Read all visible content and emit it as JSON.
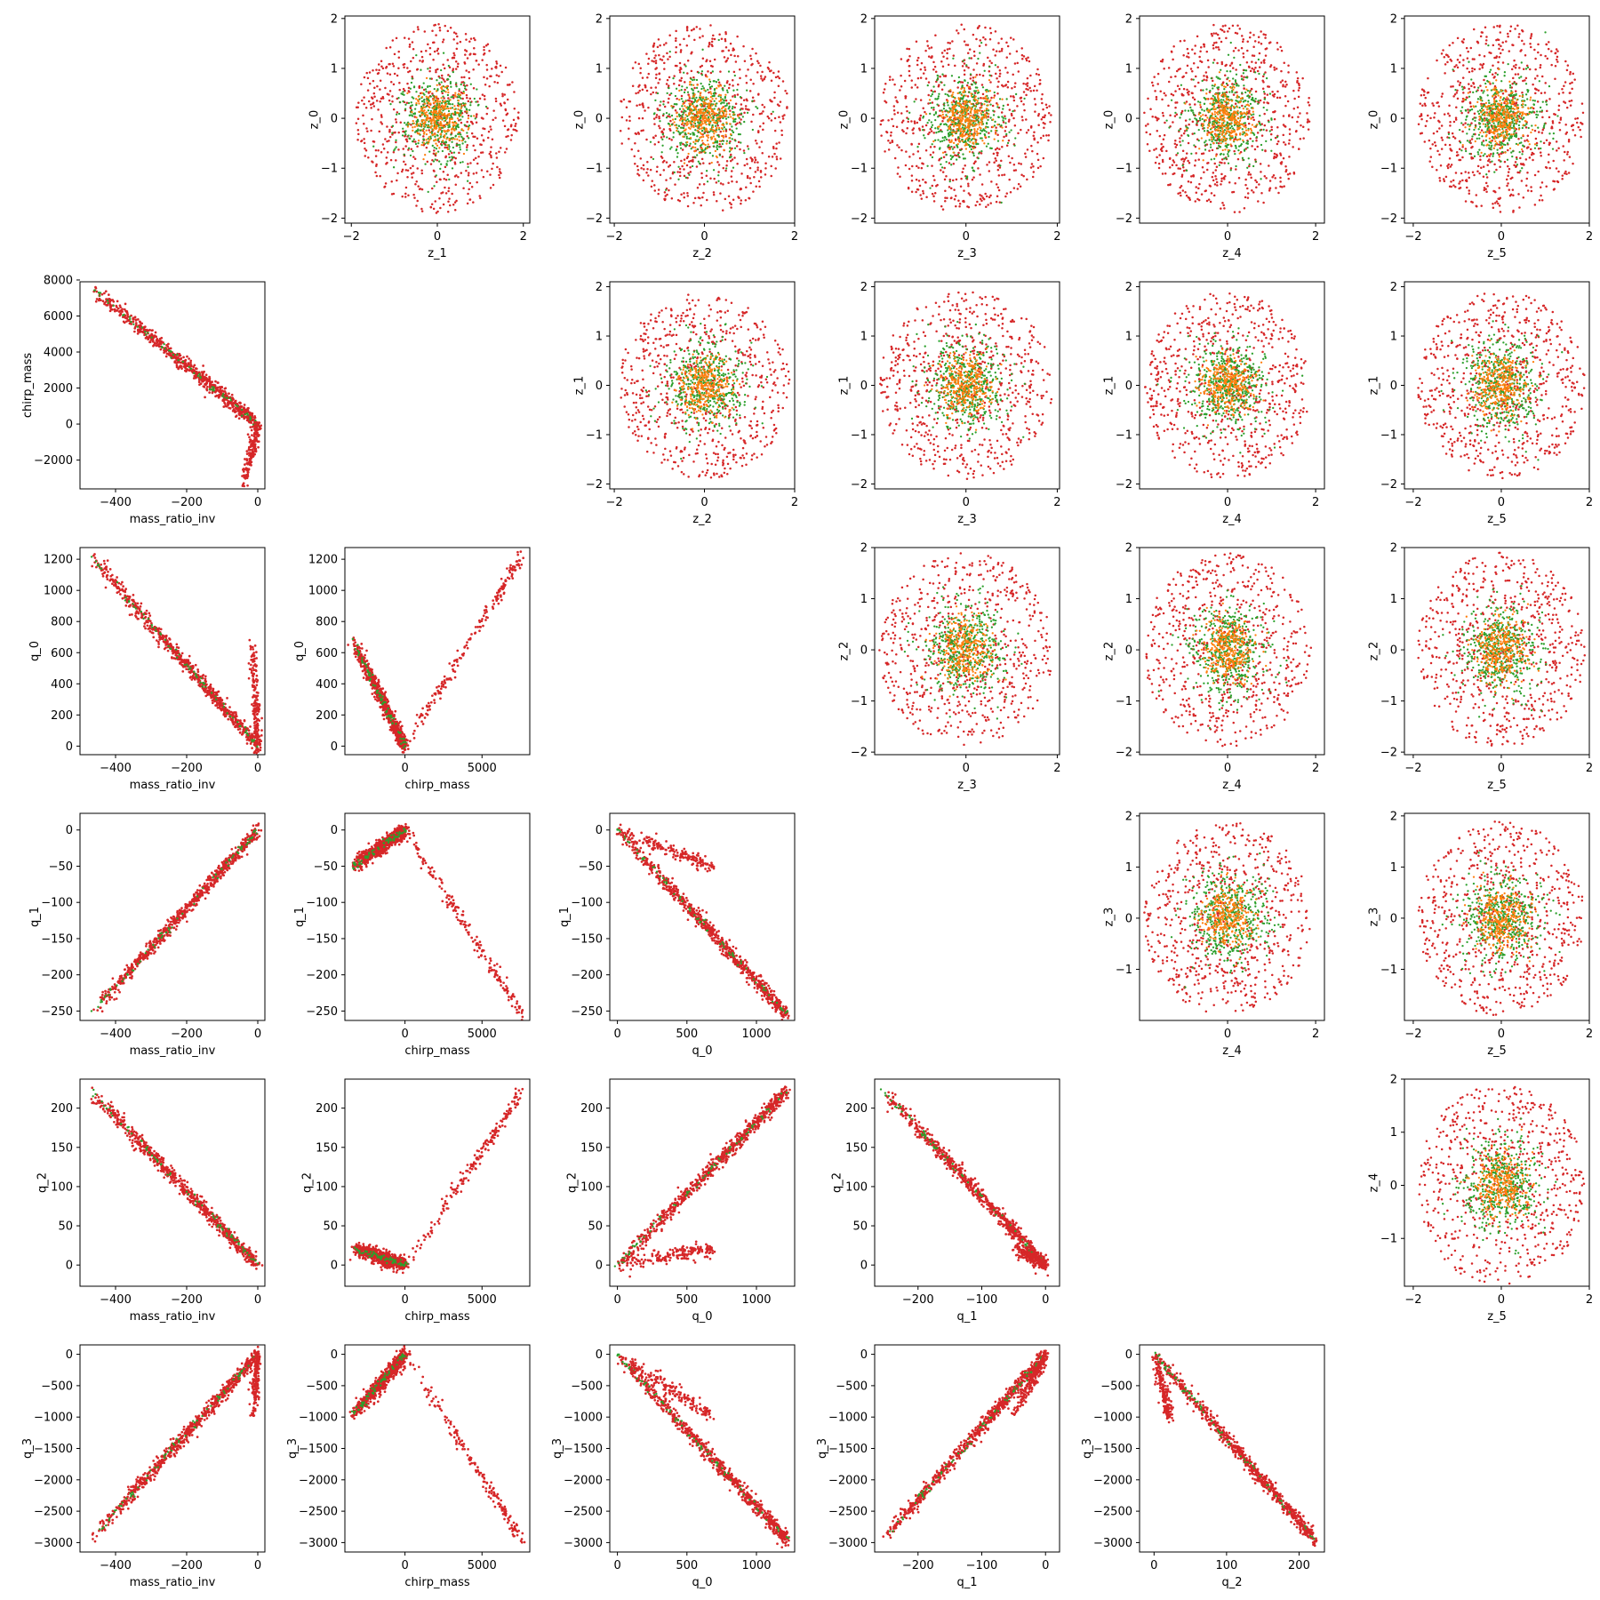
{
  "colors": {
    "red": "#d62728",
    "green": "#2ca02c",
    "orange": "#ff7f0e",
    "axis": "#000000",
    "background": "#ffffff"
  },
  "chart_data": {
    "type": "scatter",
    "layout": "pair-plot grid, 6 rows x 6 columns; lower triangle shows physical parameters, upper triangle shows latent z variables, diagonal empty",
    "series_colors": [
      "red",
      "green",
      "orange"
    ],
    "panels": [
      {
        "row": 0,
        "col": 1,
        "kind": "latent",
        "xlabel": "z_1",
        "ylabel": "z_0",
        "xlim": [
          -2.15,
          2.15
        ],
        "ylim": [
          -2.1,
          2.05
        ],
        "xticks": [
          -2,
          0,
          2
        ],
        "yticks": [
          -2,
          -1,
          0,
          1,
          2
        ],
        "seed": 11
      },
      {
        "row": 0,
        "col": 2,
        "kind": "latent",
        "xlabel": "z_2",
        "ylabel": "z_0",
        "xlim": [
          -2.1,
          2.0
        ],
        "ylim": [
          -2.1,
          2.05
        ],
        "xticks": [
          -2,
          0,
          2
        ],
        "yticks": [
          -2,
          -1,
          0,
          1,
          2
        ],
        "seed": 12
      },
      {
        "row": 0,
        "col": 3,
        "kind": "latent",
        "xlabel": "z_3",
        "ylabel": "z_0",
        "xlim": [
          -2.0,
          2.05
        ],
        "ylim": [
          -2.1,
          2.05
        ],
        "xticks": [
          0,
          2
        ],
        "yticks": [
          -2,
          -1,
          0,
          1,
          2
        ],
        "seed": 13
      },
      {
        "row": 0,
        "col": 4,
        "kind": "latent",
        "xlabel": "z_4",
        "ylabel": "z_0",
        "xlim": [
          -2.0,
          2.2
        ],
        "ylim": [
          -2.1,
          2.05
        ],
        "xticks": [
          0,
          2
        ],
        "yticks": [
          -2,
          -1,
          0,
          1,
          2
        ],
        "seed": 14
      },
      {
        "row": 0,
        "col": 5,
        "kind": "latent",
        "xlabel": "z_5",
        "ylabel": "z_0",
        "xlim": [
          -2.2,
          2.0
        ],
        "ylim": [
          -2.1,
          2.05
        ],
        "xticks": [
          -2,
          0,
          2
        ],
        "yticks": [
          -2,
          -1,
          0,
          1,
          2
        ],
        "seed": 15
      },
      {
        "row": 1,
        "col": 2,
        "kind": "latent",
        "xlabel": "z_2",
        "ylabel": "z_1",
        "xlim": [
          -2.1,
          2.0
        ],
        "ylim": [
          -2.1,
          2.1
        ],
        "xticks": [
          -2,
          0,
          2
        ],
        "yticks": [
          -2,
          -1,
          0,
          1,
          2
        ],
        "seed": 21
      },
      {
        "row": 1,
        "col": 3,
        "kind": "latent",
        "xlabel": "z_3",
        "ylabel": "z_1",
        "xlim": [
          -2.0,
          2.05
        ],
        "ylim": [
          -2.1,
          2.1
        ],
        "xticks": [
          0,
          2
        ],
        "yticks": [
          -2,
          -1,
          0,
          1,
          2
        ],
        "seed": 22
      },
      {
        "row": 1,
        "col": 4,
        "kind": "latent",
        "xlabel": "z_4",
        "ylabel": "z_1",
        "xlim": [
          -2.0,
          2.2
        ],
        "ylim": [
          -2.1,
          2.1
        ],
        "xticks": [
          0,
          2
        ],
        "yticks": [
          -2,
          -1,
          0,
          1,
          2
        ],
        "seed": 23
      },
      {
        "row": 1,
        "col": 5,
        "kind": "latent",
        "xlabel": "z_5",
        "ylabel": "z_1",
        "xlim": [
          -2.2,
          2.0
        ],
        "ylim": [
          -2.1,
          2.1
        ],
        "xticks": [
          -2,
          0,
          2
        ],
        "yticks": [
          -2,
          -1,
          0,
          1,
          2
        ],
        "seed": 24
      },
      {
        "row": 2,
        "col": 3,
        "kind": "latent",
        "xlabel": "z_3",
        "ylabel": "z_2",
        "xlim": [
          -2.0,
          2.05
        ],
        "ylim": [
          -2.05,
          2.0
        ],
        "xticks": [
          0,
          2
        ],
        "yticks": [
          -2,
          -1,
          0,
          1,
          2
        ],
        "seed": 31
      },
      {
        "row": 2,
        "col": 4,
        "kind": "latent",
        "xlabel": "z_4",
        "ylabel": "z_2",
        "xlim": [
          -2.0,
          2.2
        ],
        "ylim": [
          -2.05,
          2.0
        ],
        "xticks": [
          0,
          2
        ],
        "yticks": [
          -2,
          -1,
          0,
          1,
          2
        ],
        "seed": 32
      },
      {
        "row": 2,
        "col": 5,
        "kind": "latent",
        "xlabel": "z_5",
        "ylabel": "z_2",
        "xlim": [
          -2.2,
          2.0
        ],
        "ylim": [
          -2.05,
          2.0
        ],
        "xticks": [
          -2,
          0,
          2
        ],
        "yticks": [
          -2,
          -1,
          0,
          1,
          2
        ],
        "seed": 33
      },
      {
        "row": 3,
        "col": 4,
        "kind": "latent",
        "xlabel": "z_4",
        "ylabel": "z_3",
        "xlim": [
          -2.0,
          2.2
        ],
        "ylim": [
          -2.0,
          2.05
        ],
        "xticks": [
          0,
          2
        ],
        "yticks": [
          -1,
          0,
          1,
          2
        ],
        "seed": 41
      },
      {
        "row": 3,
        "col": 5,
        "kind": "latent",
        "xlabel": "z_5",
        "ylabel": "z_3",
        "xlim": [
          -2.2,
          2.0
        ],
        "ylim": [
          -2.0,
          2.05
        ],
        "xticks": [
          -2,
          0,
          2
        ],
        "yticks": [
          -1,
          0,
          1,
          2
        ],
        "seed": 42
      },
      {
        "row": 4,
        "col": 5,
        "kind": "latent",
        "xlabel": "z_5",
        "ylabel": "z_4",
        "xlim": [
          -2.2,
          2.0
        ],
        "ylim": [
          -1.9,
          2.0
        ],
        "xticks": [
          -2,
          0,
          2
        ],
        "yticks": [
          -1,
          0,
          1,
          2
        ],
        "seed": 51
      },
      {
        "row": 1,
        "col": 0,
        "kind": "physical",
        "xvar": "mass_ratio_inv",
        "yvar": "chirp_mass",
        "xlabel": "mass_ratio_inv",
        "ylabel": "chirp_mass",
        "xlim": [
          -500,
          20
        ],
        "ylim": [
          -3600,
          7900
        ],
        "xticks": [
          -400,
          -200,
          0
        ],
        "yticks": [
          -2000,
          0,
          2000,
          4000,
          6000,
          8000
        ],
        "seed": 101
      },
      {
        "row": 2,
        "col": 0,
        "kind": "physical",
        "xvar": "mass_ratio_inv",
        "yvar": "q_0",
        "xlabel": "mass_ratio_inv",
        "ylabel": "q_0",
        "xlim": [
          -500,
          20
        ],
        "ylim": [
          -55,
          1275
        ],
        "xticks": [
          -400,
          -200,
          0
        ],
        "yticks": [
          0,
          200,
          400,
          600,
          800,
          1000,
          1200
        ],
        "seed": 102
      },
      {
        "row": 2,
        "col": 1,
        "kind": "physical",
        "xvar": "chirp_mass",
        "yvar": "q_0",
        "xlabel": "chirp_mass",
        "ylabel": "q_0",
        "xlim": [
          -3900,
          8100
        ],
        "ylim": [
          -55,
          1275
        ],
        "xticks": [
          0,
          5000
        ],
        "yticks": [
          0,
          200,
          400,
          600,
          800,
          1000,
          1200
        ],
        "seed": 103
      },
      {
        "row": 3,
        "col": 0,
        "kind": "physical",
        "xvar": "mass_ratio_inv",
        "yvar": "q_1",
        "xlabel": "mass_ratio_inv",
        "ylabel": "q_1",
        "xlim": [
          -500,
          20
        ],
        "ylim": [
          -263,
          23
        ],
        "xticks": [
          -400,
          -200,
          0
        ],
        "yticks": [
          -250,
          -200,
          -150,
          -100,
          -50,
          0
        ],
        "seed": 104
      },
      {
        "row": 3,
        "col": 1,
        "kind": "physical",
        "xvar": "chirp_mass",
        "yvar": "q_1",
        "xlabel": "chirp_mass",
        "ylabel": "q_1",
        "xlim": [
          -3900,
          8100
        ],
        "ylim": [
          -263,
          23
        ],
        "xticks": [
          0,
          5000
        ],
        "yticks": [
          -250,
          -200,
          -150,
          -100,
          -50,
          0
        ],
        "seed": 105
      },
      {
        "row": 3,
        "col": 2,
        "kind": "physical",
        "xvar": "q_0",
        "yvar": "q_1",
        "xlabel": "q_0",
        "ylabel": "q_1",
        "xlim": [
          -55,
          1275
        ],
        "ylim": [
          -263,
          23
        ],
        "xticks": [
          0,
          500,
          1000
        ],
        "yticks": [
          -250,
          -200,
          -150,
          -100,
          -50,
          0
        ],
        "seed": 106
      },
      {
        "row": 4,
        "col": 0,
        "kind": "physical",
        "xvar": "mass_ratio_inv",
        "yvar": "q_2",
        "xlabel": "mass_ratio_inv",
        "ylabel": "q_2",
        "xlim": [
          -500,
          20
        ],
        "ylim": [
          -27,
          237
        ],
        "xticks": [
          -400,
          -200,
          0
        ],
        "yticks": [
          0,
          50,
          100,
          150,
          200
        ],
        "seed": 107
      },
      {
        "row": 4,
        "col": 1,
        "kind": "physical",
        "xvar": "chirp_mass",
        "yvar": "q_2",
        "xlabel": "chirp_mass",
        "ylabel": "q_2",
        "xlim": [
          -3900,
          8100
        ],
        "ylim": [
          -27,
          237
        ],
        "xticks": [
          0,
          5000
        ],
        "yticks": [
          0,
          50,
          100,
          150,
          200
        ],
        "seed": 108
      },
      {
        "row": 4,
        "col": 2,
        "kind": "physical",
        "xvar": "q_0",
        "yvar": "q_2",
        "xlabel": "q_0",
        "ylabel": "q_2",
        "xlim": [
          -55,
          1275
        ],
        "ylim": [
          -27,
          237
        ],
        "xticks": [
          0,
          500,
          1000
        ],
        "yticks": [
          0,
          50,
          100,
          150,
          200
        ],
        "seed": 109
      },
      {
        "row": 4,
        "col": 3,
        "kind": "physical",
        "xvar": "q_1",
        "yvar": "q_2",
        "xlabel": "q_1",
        "ylabel": "q_2",
        "xlim": [
          -268,
          22
        ],
        "ylim": [
          -27,
          237
        ],
        "xticks": [
          -200,
          -100,
          0
        ],
        "yticks": [
          0,
          50,
          100,
          150,
          200
        ],
        "seed": 110
      },
      {
        "row": 5,
        "col": 0,
        "kind": "physical",
        "xvar": "mass_ratio_inv",
        "yvar": "q_3",
        "xlabel": "mass_ratio_inv",
        "ylabel": "q_3",
        "xlim": [
          -500,
          20
        ],
        "ylim": [
          -3150,
          150
        ],
        "xticks": [
          -400,
          -200,
          0
        ],
        "yticks": [
          -3000,
          -2500,
          -2000,
          -1500,
          -1000,
          -500,
          0
        ],
        "seed": 111
      },
      {
        "row": 5,
        "col": 1,
        "kind": "physical",
        "xvar": "chirp_mass",
        "yvar": "q_3",
        "xlabel": "chirp_mass",
        "ylabel": "q_3",
        "xlim": [
          -3900,
          8100
        ],
        "ylim": [
          -3150,
          150
        ],
        "xticks": [
          0,
          5000
        ],
        "yticks": [
          -3000,
          -2500,
          -2000,
          -1500,
          -1000,
          -500,
          0
        ],
        "seed": 112
      },
      {
        "row": 5,
        "col": 2,
        "kind": "physical",
        "xvar": "q_0",
        "yvar": "q_3",
        "xlabel": "q_0",
        "ylabel": "q_3",
        "xlim": [
          -55,
          1275
        ],
        "ylim": [
          -3150,
          150
        ],
        "xticks": [
          0,
          500,
          1000
        ],
        "yticks": [
          -3000,
          -2500,
          -2000,
          -1500,
          -1000,
          -500,
          0
        ],
        "seed": 113
      },
      {
        "row": 5,
        "col": 3,
        "kind": "physical",
        "xvar": "q_1",
        "yvar": "q_3",
        "xlabel": "q_1",
        "ylabel": "q_3",
        "xlim": [
          -268,
          22
        ],
        "ylim": [
          -3150,
          150
        ],
        "xticks": [
          -200,
          -100,
          0
        ],
        "yticks": [
          -3000,
          -2500,
          -2000,
          -1500,
          -1000,
          -500,
          0
        ],
        "seed": 114
      },
      {
        "row": 5,
        "col": 4,
        "kind": "physical",
        "xvar": "q_2",
        "yvar": "q_3",
        "xlabel": "q_2",
        "ylabel": "q_3",
        "xlim": [
          -20,
          235
        ],
        "ylim": [
          -3150,
          150
        ],
        "xticks": [
          0,
          100,
          200
        ],
        "yticks": [
          -3000,
          -2500,
          -2000,
          -1500,
          -1000,
          -500,
          0
        ],
        "seed": 115
      }
    ],
    "trend_segments": {
      "mass_ratio_inv": {
        "chirp_mass": [
          [
            [
              -470,
              7600
            ],
            [
              0,
              0
            ]
          ],
          [
            [
              -40,
              -3400
            ],
            [
              0,
              0
            ]
          ]
        ],
        "q_0": [
          [
            [
              -470,
              1220
            ],
            [
              0,
              0
            ]
          ],
          [
            [
              -15,
              680
            ],
            [
              0,
              0
            ]
          ]
        ],
        "q_1": [
          [
            [
              -470,
              -255
            ],
            [
              0,
              0
            ]
          ]
        ],
        "q_2": [
          [
            [
              -470,
              222
            ],
            [
              0,
              0
            ]
          ]
        ],
        "q_3": [
          [
            [
              -470,
              -2960
            ],
            [
              0,
              0
            ]
          ],
          [
            [
              -12,
              -980
            ],
            [
              0,
              0
            ]
          ]
        ]
      },
      "chirp_mass": {
        "q_0": [
          [
            [
              -3400,
              680
            ],
            [
              0,
              0
            ]
          ],
          [
            [
              0,
              0
            ],
            [
              7600,
              1220
            ]
          ]
        ],
        "q_1": [
          [
            [
              -3400,
              -50
            ],
            [
              0,
              0
            ]
          ],
          [
            [
              0,
              0
            ],
            [
              7600,
              -255
            ]
          ]
        ],
        "q_2": [
          [
            [
              -3400,
              22
            ],
            [
              0,
              0
            ]
          ],
          [
            [
              0,
              0
            ],
            [
              7600,
              222
            ]
          ]
        ],
        "q_3": [
          [
            [
              -3400,
              -980
            ],
            [
              0,
              0
            ]
          ],
          [
            [
              0,
              0
            ],
            [
              7600,
              -2960
            ]
          ]
        ]
      },
      "q_0": {
        "q_1": [
          [
            [
              0,
              0
            ],
            [
              1220,
              -255
            ]
          ],
          [
            [
              0,
              0
            ],
            [
              680,
              -50
            ]
          ]
        ],
        "q_2": [
          [
            [
              0,
              0
            ],
            [
              1220,
              222
            ]
          ],
          [
            [
              0,
              0
            ],
            [
              680,
              22
            ]
          ]
        ],
        "q_3": [
          [
            [
              0,
              0
            ],
            [
              1220,
              -2960
            ]
          ],
          [
            [
              0,
              0
            ],
            [
              680,
              -980
            ]
          ]
        ]
      },
      "q_1": {
        "q_2": [
          [
            [
              -255,
              222
            ],
            [
              0,
              0
            ]
          ],
          [
            [
              -50,
              22
            ],
            [
              0,
              0
            ]
          ]
        ],
        "q_3": [
          [
            [
              -255,
              -2960
            ],
            [
              0,
              0
            ]
          ],
          [
            [
              -50,
              -980
            ],
            [
              0,
              0
            ]
          ]
        ]
      },
      "q_2": {
        "q_3": [
          [
            [
              0,
              0
            ],
            [
              222,
              -2960
            ]
          ],
          [
            [
              0,
              0
            ],
            [
              22,
              -980
            ]
          ]
        ]
      }
    }
  }
}
